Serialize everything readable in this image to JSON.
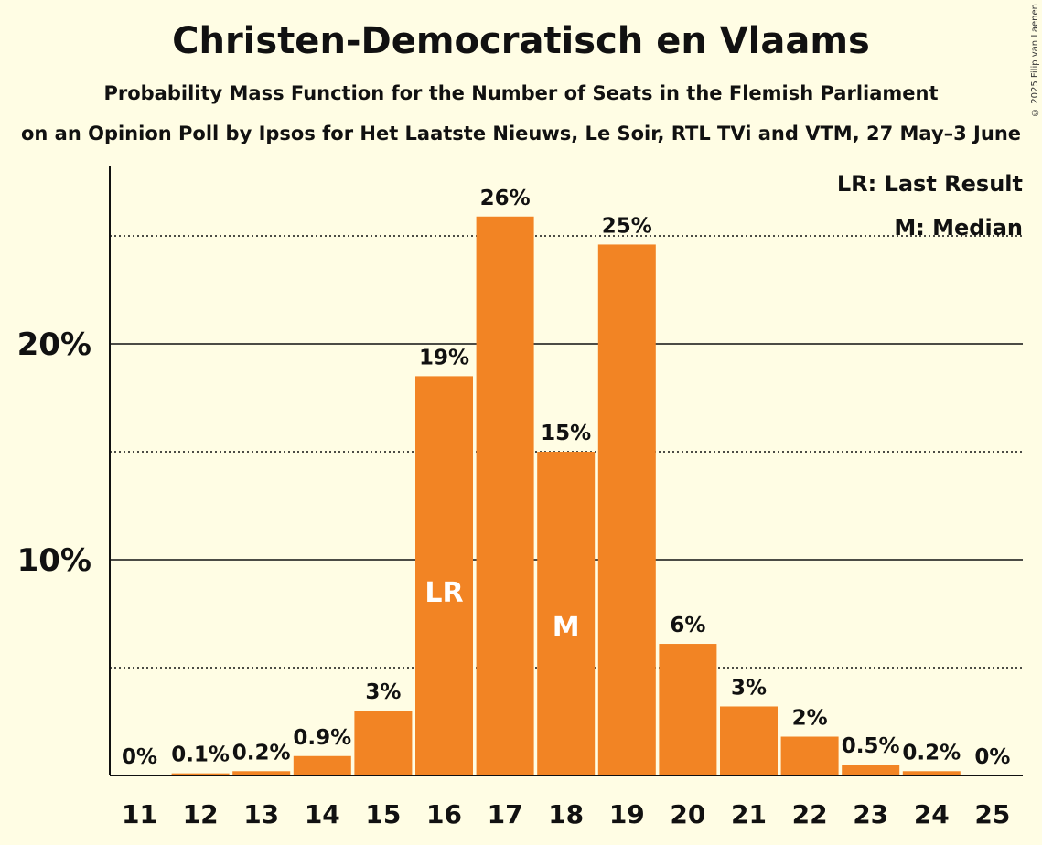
{
  "title": "Christen-Democratisch en Vlaams",
  "subtitle": "Probability Mass Function for the Number of Seats in the Flemish Parliament",
  "source": "on an Opinion Poll by Ipsos for Het Laatste Nieuws, Le Soir, RTL TVi and VTM, 27 May–3 June",
  "copyright": "© 2025 Filip van Laenen",
  "legend": {
    "last_result": "LR: Last Result",
    "median": "M: Median"
  },
  "colors": {
    "bar": "#F28424",
    "background": "#FFFDE4"
  },
  "chart_data": {
    "type": "bar",
    "categories": [
      "11",
      "12",
      "13",
      "14",
      "15",
      "16",
      "17",
      "18",
      "19",
      "20",
      "21",
      "22",
      "23",
      "24",
      "25"
    ],
    "values": [
      0,
      0.1,
      0.2,
      0.9,
      3,
      18.5,
      25.9,
      15,
      24.6,
      6.1,
      3.2,
      1.8,
      0.5,
      0.2,
      0
    ],
    "labels": [
      "0%",
      "0.1%",
      "0.2%",
      "0.9%",
      "3%",
      "19%",
      "26%",
      "15%",
      "25%",
      "6%",
      "3%",
      "2%",
      "0.5%",
      "0.2%",
      "0%"
    ],
    "ylim": [
      0,
      28
    ],
    "yticks_major": [
      10,
      20
    ],
    "ytick_labels": [
      "10%",
      "20%"
    ],
    "yticks_minor": [
      5,
      15,
      25
    ],
    "markers": [
      {
        "category": "16",
        "text": "LR"
      },
      {
        "category": "18",
        "text": "M"
      }
    ],
    "legend_position": "top-right"
  }
}
